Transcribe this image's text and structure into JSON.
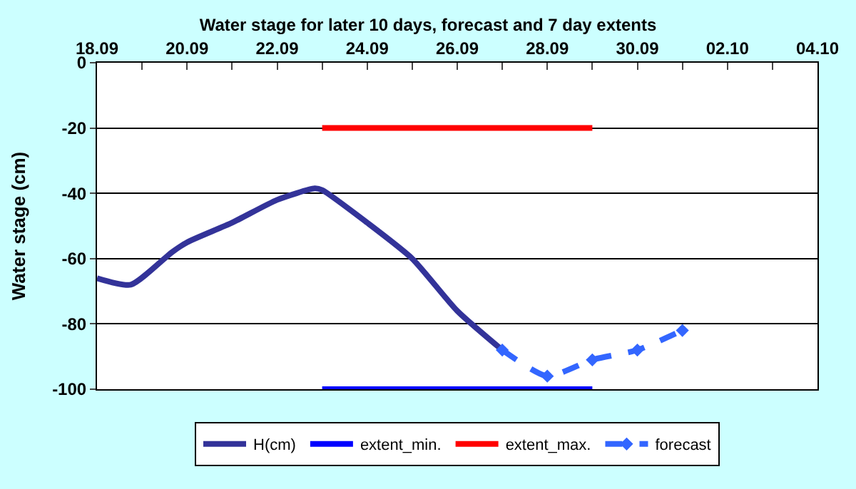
{
  "chart_data": {
    "type": "line",
    "title": "Water stage for later 10 days, forecast and 7 day extents",
    "ylabel": "Water stage (cm)",
    "xlim": [
      "--09-18",
      "--10-04"
    ],
    "xticks": [
      {
        "value": "--09-18",
        "label": "18.09"
      },
      {
        "value": "--09-19",
        "label": null
      },
      {
        "value": "--09-20",
        "label": "20.09"
      },
      {
        "value": "--09-21",
        "label": null
      },
      {
        "value": "--09-22",
        "label": "22.09"
      },
      {
        "value": "--09-23",
        "label": null
      },
      {
        "value": "--09-24",
        "label": "24.09"
      },
      {
        "value": "--09-25",
        "label": null
      },
      {
        "value": "--09-26",
        "label": "26.09"
      },
      {
        "value": "--09-27",
        "label": null
      },
      {
        "value": "--09-28",
        "label": "28.09"
      },
      {
        "value": "--09-29",
        "label": null
      },
      {
        "value": "--09-30",
        "label": "30.09"
      },
      {
        "value": "--10-01",
        "label": null
      },
      {
        "value": "--10-02",
        "label": "02.10"
      },
      {
        "value": "--10-03",
        "label": null
      },
      {
        "value": "--10-04",
        "label": "04.10"
      }
    ],
    "ylim": [
      -100,
      0
    ],
    "yticks": [
      0,
      -20,
      -40,
      -60,
      -80,
      -100
    ],
    "grid": "y",
    "legend": "bottom",
    "series": [
      {
        "name": "H(cm)",
        "color": "#333399",
        "line_style": "solid",
        "marker": "none",
        "x": [
          "--09-18",
          "--09-18T18:00",
          "--09-19T16:00",
          "--09-20",
          "--09-21",
          "--09-22",
          "--09-22T20:00",
          "--09-23",
          "--09-24",
          "--09-25",
          "--09-26",
          "--09-27"
        ],
        "values": [
          -66,
          -68,
          -58,
          -55,
          -49,
          -42,
          -38.5,
          -39,
          -49,
          -60,
          -76,
          -88
        ]
      },
      {
        "name": "extent_min.",
        "color": "#0000ff",
        "line_style": "solid",
        "marker": "none",
        "x": [
          "--09-23",
          "--09-29"
        ],
        "values": [
          -100,
          -100
        ]
      },
      {
        "name": "extent_max.",
        "color": "#ff0000",
        "line_style": "solid",
        "marker": "none",
        "x": [
          "--09-23",
          "--09-29"
        ],
        "values": [
          -20,
          -20
        ]
      },
      {
        "name": "forecast",
        "color": "#3366ff",
        "line_style": "dashed",
        "marker": "diamond",
        "x": [
          "--09-27",
          "--09-28",
          "--09-29",
          "--09-30",
          "--10-01"
        ],
        "values": [
          -88,
          -96,
          -91,
          -88,
          -82
        ]
      }
    ]
  }
}
